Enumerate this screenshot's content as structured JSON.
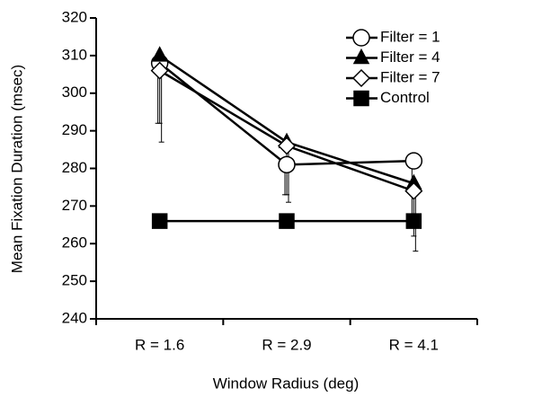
{
  "chart_data": {
    "type": "line",
    "x_label": "Window Radius (deg)",
    "y_label": "Mean Fixation Duration (msec)",
    "categories": [
      "R = 1.6",
      "R = 2.9",
      "R = 4.1"
    ],
    "ylim": [
      240,
      320
    ],
    "yticks": [
      240,
      250,
      260,
      270,
      280,
      290,
      300,
      310,
      320
    ],
    "legend_position": "upper right",
    "series": [
      {
        "name": "Filter = 1",
        "color": "#000000",
        "marker": "circle",
        "filled": false,
        "values": [
          308,
          281,
          282
        ],
        "errors": [
          16,
          8,
          17
        ]
      },
      {
        "name": "Filter = 4",
        "color": "#000000",
        "marker": "triangle",
        "filled": true,
        "values": [
          310,
          287,
          276
        ],
        "errors": [
          18,
          14,
          14
        ]
      },
      {
        "name": "Filter = 7",
        "color": "#000000",
        "marker": "diamond",
        "filled": false,
        "values": [
          306,
          286,
          274
        ],
        "errors": [
          19,
          15,
          16
        ]
      },
      {
        "name": "Control",
        "color": "#000000",
        "marker": "square",
        "filled": true,
        "values": [
          266,
          266,
          266
        ]
      }
    ]
  }
}
